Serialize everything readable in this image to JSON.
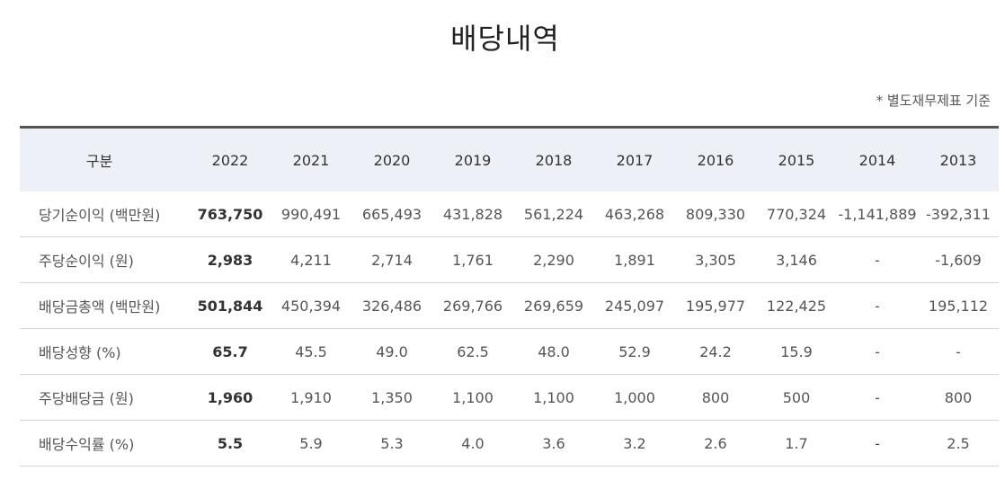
{
  "title": "배당내역",
  "basis_note": "* 별도재무제표 기준",
  "table": {
    "header_label": "구분",
    "years": [
      "2022",
      "2021",
      "2020",
      "2019",
      "2018",
      "2017",
      "2016",
      "2015",
      "2014",
      "2013"
    ],
    "rows": [
      {
        "label": "당기순이익 (백만원)",
        "values": [
          "763,750",
          "990,491",
          "665,493",
          "431,828",
          "561,224",
          "463,268",
          "809,330",
          "770,324",
          "-1,141,889",
          "-392,311"
        ]
      },
      {
        "label": "주당순이익 (원)",
        "values": [
          "2,983",
          "4,211",
          "2,714",
          "1,761",
          "2,290",
          "1,891",
          "3,305",
          "3,146",
          "-",
          "-1,609"
        ]
      },
      {
        "label": "배당금총액 (백만원)",
        "values": [
          "501,844",
          "450,394",
          "326,486",
          "269,766",
          "269,659",
          "245,097",
          "195,977",
          "122,425",
          "-",
          "195,112"
        ]
      },
      {
        "label": "배당성향 (%)",
        "values": [
          "65.7",
          "45.5",
          "49.0",
          "62.5",
          "48.0",
          "52.9",
          "24.2",
          "15.9",
          "-",
          "-"
        ]
      },
      {
        "label": "주당배당금 (원)",
        "values": [
          "1,960",
          "1,910",
          "1,350",
          "1,100",
          "1,100",
          "1,000",
          "800",
          "500",
          "-",
          "800"
        ]
      },
      {
        "label": "배당수익률 (%)",
        "values": [
          "5.5",
          "5.9",
          "5.3",
          "4.0",
          "3.6",
          "3.2",
          "2.6",
          "1.7",
          "-",
          "2.5"
        ]
      }
    ]
  }
}
